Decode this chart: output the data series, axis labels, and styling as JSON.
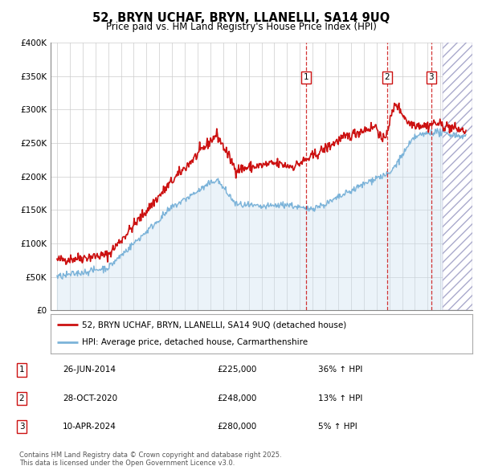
{
  "title1": "52, BRYN UCHAF, BRYN, LLANELLI, SA14 9UQ",
  "title2": "Price paid vs. HM Land Registry's House Price Index (HPI)",
  "legend_line1": "52, BRYN UCHAF, BRYN, LLANELLI, SA14 9UQ (detached house)",
  "legend_line2": "HPI: Average price, detached house, Carmarthenshire",
  "red_color": "#cc1111",
  "blue_color": "#7bb3d9",
  "blue_fill": "#c8dff0",
  "annotation_color": "#cc1111",
  "background_color": "#ffffff",
  "grid_color": "#cccccc",
  "sales": [
    {
      "num": 1,
      "date": "26-JUN-2014",
      "price": "£225,000",
      "change": "36% ↑ HPI",
      "year": 2014.49
    },
    {
      "num": 2,
      "date": "28-OCT-2020",
      "price": "£248,000",
      "change": "13% ↑ HPI",
      "year": 2020.83
    },
    {
      "num": 3,
      "date": "10-APR-2024",
      "price": "£280,000",
      "change": "5% ↑ HPI",
      "year": 2024.28
    }
  ],
  "footer": "Contains HM Land Registry data © Crown copyright and database right 2025.\nThis data is licensed under the Open Government Licence v3.0.",
  "ylim": [
    0,
    400000
  ],
  "xlim": [
    1994.5,
    2027.5
  ],
  "hatch_start": 2025.2
}
